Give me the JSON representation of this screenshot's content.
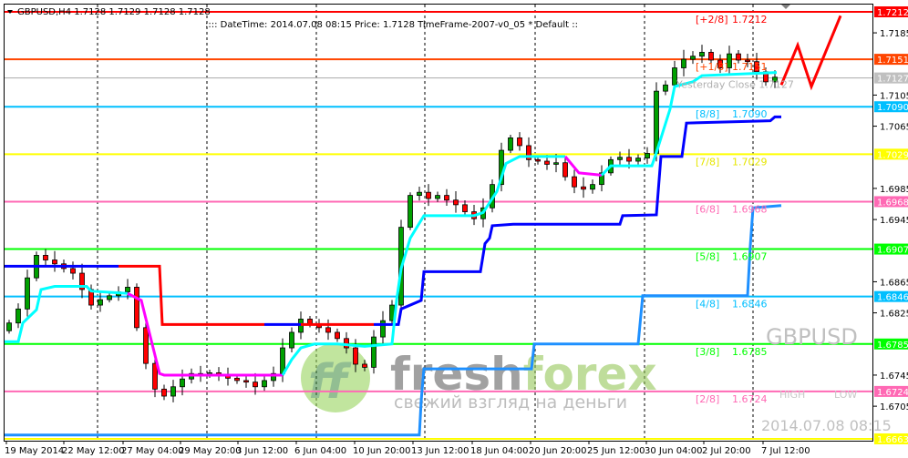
{
  "header": {
    "symbol_line": "GBPUSD,H4  1.7128 1.7129 1.7128 1.7128",
    "info_line": ":::: DateTime: 2014.07.08 08:15    Price: 1.7128    TimeFrame-2007-v0_05    *  Default  ::"
  },
  "watermark": {
    "brand": "freshforex",
    "slogan": "свежий взгляд на деньги",
    "symbol": "GBPUSD",
    "high_label": "HIGH",
    "low_label": "LOW",
    "datetime": "2014.07.08 08:15"
  },
  "colors": {
    "background": "#ffffff",
    "grid": "#000000",
    "bull": "#00a000",
    "bear": "#ff0000",
    "wick": "#000000"
  },
  "chart_data": {
    "type": "candlestick",
    "title": "GBPUSD,H4",
    "ylim": [
      1.6663,
      1.7212
    ],
    "grid": true,
    "y_ticks": [
      "1.7185",
      "1.7105",
      "1.7065",
      "1.6985",
      "1.6945",
      "1.6865",
      "1.6825",
      "1.6745",
      "1.6705"
    ],
    "x_ticks": [
      "19 May 2014",
      "22 May 12:00",
      "27 May 04:00",
      "29 May 20:00",
      "3 Jun 12:00",
      "6 Jun 04:00",
      "10 Jun 20:00",
      "13 Jun 12:00",
      "18 Jun 04:00",
      "20 Jun 20:00",
      "25 Jun 12:00",
      "30 Jun 04:00",
      "2 Jul 20:00",
      "7 Jul 12:00"
    ],
    "closes": [
      1.6812,
      1.683,
      1.687,
      1.6899,
      1.6893,
      1.6888,
      1.6882,
      1.6876,
      1.6855,
      1.6835,
      1.6842,
      1.6847,
      1.6852,
      1.6858,
      1.6806,
      1.676,
      1.6727,
      1.6718,
      1.673,
      1.674,
      1.6747,
      1.6745,
      1.6748,
      1.6744,
      1.6741,
      1.6738,
      1.6736,
      1.673,
      1.6738,
      1.6747,
      1.678,
      1.68,
      1.6817,
      1.681,
      1.6806,
      1.68,
      1.6792,
      1.678,
      1.6759,
      1.6755,
      1.6794,
      1.6815,
      1.6835,
      1.6935,
      1.6976,
      1.698,
      1.6972,
      1.6976,
      1.697,
      1.6964,
      1.6955,
      1.6946,
      1.696,
      1.699,
      1.7034,
      1.705,
      1.704,
      1.7022,
      1.702,
      1.7016,
      1.7018,
      1.7,
      1.6987,
      1.6984,
      1.699,
      1.7005,
      1.7022,
      1.7025,
      1.702,
      1.7024,
      1.703,
      1.711,
      1.7118,
      1.714,
      1.7151,
      1.7155,
      1.716,
      1.715,
      1.714,
      1.7158,
      1.715,
      1.7148,
      1.7135,
      1.7122,
      1.7128
    ],
    "levels": [
      {
        "label": "[+2/8]",
        "value": "1.7212",
        "price": 1.7212,
        "color": "#ff0000",
        "tag_color": "#ff0000"
      },
      {
        "label": "[+1/8]",
        "value": "1.7151",
        "price": 1.7151,
        "color": "#ff4500",
        "tag_color": "#ff4500"
      },
      {
        "label": "Yesterday Close",
        "value": "1.7127",
        "price": 1.7127,
        "color": "#a9a9a9",
        "tag_color": "#c0c0c0"
      },
      {
        "label": "[8/8]",
        "value": "1.7090",
        "price": 1.709,
        "color": "#00bfff",
        "tag_color": "#00bfff"
      },
      {
        "label": "[7/8]",
        "value": "1.7029",
        "price": 1.7029,
        "color": "#ffff00",
        "tag_color": "#ffff00"
      },
      {
        "label": "[6/8]",
        "value": "1.6968",
        "price": 1.6968,
        "color": "#ff69b4",
        "tag_color": "#ff69b4"
      },
      {
        "label": "[5/8]",
        "value": "1.6907",
        "price": 1.6907,
        "color": "#00ff00",
        "tag_color": "#00ff00"
      },
      {
        "label": "[4/8]",
        "value": "1.6846",
        "price": 1.6846,
        "color": "#00bfff",
        "tag_color": "#00bfff"
      },
      {
        "label": "[3/8]",
        "value": "1.6785",
        "price": 1.6785,
        "color": "#00ff00",
        "tag_color": "#00ff00"
      },
      {
        "label": "[2/8]",
        "value": "1.6724",
        "price": 1.6724,
        "color": "#ff69b4",
        "tag_color": "#ff69b4"
      },
      {
        "label": "",
        "value": "1.6663",
        "price": 1.6663,
        "color": "#ffff00",
        "tag_color": "#ffff00"
      }
    ],
    "indicator_lines": [
      {
        "color": "#0000ff",
        "points": [
          [
            -0.5,
            1.6885
          ],
          [
            12,
            1.6885
          ]
        ]
      },
      {
        "color": "#ff0000",
        "points": [
          [
            12,
            1.6885
          ],
          [
            16.5,
            1.6885
          ],
          [
            16.8,
            1.681
          ],
          [
            28,
            1.681
          ]
        ]
      },
      {
        "color": "#0000ff",
        "points": [
          [
            28,
            1.681
          ],
          [
            32,
            1.681
          ]
        ]
      },
      {
        "color": "#ff0000",
        "points": [
          [
            32,
            1.681
          ],
          [
            40,
            1.681
          ]
        ]
      },
      {
        "color": "#0000ff",
        "points": [
          [
            40,
            1.681
          ],
          [
            42.7,
            1.681
          ],
          [
            43,
            1.683
          ],
          [
            45.2,
            1.6841
          ],
          [
            45.5,
            1.6878
          ],
          [
            51.7,
            1.6878
          ],
          [
            52.2,
            1.6914
          ],
          [
            52.7,
            1.6921
          ],
          [
            53,
            1.6937
          ],
          [
            55.3,
            1.6939
          ],
          [
            67,
            1.6939
          ],
          [
            67.3,
            1.695
          ],
          [
            71,
            1.6951
          ],
          [
            71.5,
            1.7026
          ],
          [
            73.8,
            1.7026
          ],
          [
            74.3,
            1.7069
          ],
          [
            83.5,
            1.7072
          ],
          [
            84,
            1.7077
          ],
          [
            84.7,
            1.7077
          ]
        ]
      },
      {
        "color": "#00ffff",
        "points": [
          [
            -0.5,
            1.6788
          ],
          [
            1,
            1.6788
          ],
          [
            1.5,
            1.6812
          ],
          [
            3,
            1.6829
          ],
          [
            3.5,
            1.6855
          ],
          [
            5,
            1.6859
          ],
          [
            8.5,
            1.6859
          ],
          [
            9,
            1.6853
          ],
          [
            13,
            1.685
          ]
        ]
      },
      {
        "color": "#ff00ff",
        "points": [
          [
            13,
            1.685
          ],
          [
            14.5,
            1.6841
          ],
          [
            15.5,
            1.6794
          ],
          [
            16.5,
            1.6747
          ],
          [
            17,
            1.6745
          ],
          [
            30,
            1.6745
          ]
        ]
      },
      {
        "color": "#00ffff",
        "points": [
          [
            30,
            1.6745
          ],
          [
            31,
            1.6765
          ],
          [
            32,
            1.678
          ],
          [
            33.5,
            1.6785
          ],
          [
            36,
            1.6785
          ],
          [
            39,
            1.6782
          ],
          [
            42,
            1.6785
          ],
          [
            42.5,
            1.6841
          ],
          [
            43,
            1.6882
          ],
          [
            44,
            1.6921
          ],
          [
            45.5,
            1.695
          ],
          [
            51,
            1.695
          ],
          [
            52,
            1.6954
          ],
          [
            53.5,
            1.6981
          ],
          [
            54.5,
            1.7017
          ],
          [
            56,
            1.7026
          ],
          [
            61,
            1.7026
          ]
        ]
      },
      {
        "color": "#ff00ff",
        "points": [
          [
            61,
            1.7026
          ],
          [
            62.5,
            1.7005
          ],
          [
            65,
            1.7002
          ]
        ]
      },
      {
        "color": "#00ffff",
        "points": [
          [
            65,
            1.7002
          ],
          [
            66,
            1.7014
          ],
          [
            70.5,
            1.7014
          ],
          [
            71,
            1.7031
          ],
          [
            72.5,
            1.7087
          ],
          [
            73,
            1.7116
          ],
          [
            75,
            1.7122
          ],
          [
            76,
            1.713
          ],
          [
            84.2,
            1.7134
          ]
        ]
      },
      {
        "color": "#1e90ff",
        "points": [
          [
            -0.5,
            1.6668
          ],
          [
            45,
            1.6668
          ],
          [
            45.2,
            1.6712
          ],
          [
            45.5,
            1.6753
          ],
          [
            57.3,
            1.6753
          ],
          [
            57.6,
            1.6785
          ],
          [
            69,
            1.6785
          ],
          [
            69.5,
            1.6847
          ],
          [
            81,
            1.6847
          ],
          [
            81.3,
            1.6911
          ],
          [
            81.6,
            1.696
          ],
          [
            84.7,
            1.6963
          ]
        ]
      }
    ],
    "forecast_line": {
      "color": "#ff0000",
      "points": [
        [
          84.7,
          1.7118
        ],
        [
          86.5,
          1.7169
        ],
        [
          88,
          1.7116
        ],
        [
          91.2,
          1.7207
        ]
      ]
    }
  }
}
